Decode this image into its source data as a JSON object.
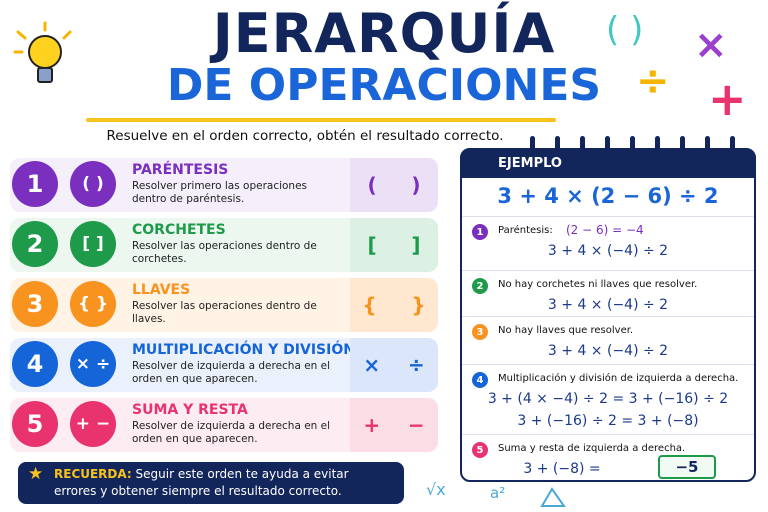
{
  "header": {
    "title_line1": "JERARQUÍA",
    "title_line2": "DE OPERACIONES",
    "subtitle": "Resuelve en el orden correcto, obtén el resultado correcto."
  },
  "decorations": {
    "parens": "( )",
    "times": "×",
    "divide": "÷",
    "plus": "+",
    "sqrt": "√x",
    "square": "a²"
  },
  "steps": [
    {
      "number": "1",
      "symbol": "( )",
      "title": "PARÉNTESIS",
      "description": "Resolver primero las operaciones dentro de paréntesis.",
      "example": "(     )"
    },
    {
      "number": "2",
      "symbol": "[ ]",
      "title": "CORCHETES",
      "description": "Resolver las operaciones dentro de corchetes.",
      "example": "[     ]"
    },
    {
      "number": "3",
      "symbol": "{ }",
      "title": "LLAVES",
      "description": "Resolver las operaciones dentro de llaves.",
      "example": "{     }"
    },
    {
      "number": "4",
      "symbol": "× ÷",
      "title": "MULTIPLICACIÓN Y DIVISIÓN",
      "description": "Resolver de izquierda a derecha en el orden en que aparecen.",
      "example": "×    ÷"
    },
    {
      "number": "5",
      "symbol": "+ −",
      "title": "SUMA Y RESTA",
      "description": "Resolver de izquierda a derecha en el orden en que aparecen.",
      "example": "+    −"
    }
  ],
  "reminder": {
    "label": "RECUERDA:",
    "text": "Seguir este orden te ayuda a evitar errores y obtener siempre el resultado correcto."
  },
  "example": {
    "title": "EJEMPLO",
    "expression": "3 + 4 × (2 − 6) ÷ 2",
    "steps": [
      {
        "number": "1",
        "label": "Paréntesis:",
        "detail": "(2 − 6) = −4",
        "lines": [
          "3 + 4 × (−4) ÷ 2"
        ]
      },
      {
        "number": "2",
        "label": "No hay corchetes ni llaves que resolver.",
        "lines": [
          "3 + 4 × (−4) ÷ 2"
        ]
      },
      {
        "number": "3",
        "label": "No hay llaves que resolver.",
        "lines": [
          "3 + 4 × (−4) ÷ 2"
        ]
      },
      {
        "number": "4",
        "label": "Multiplicación y división de izquierda a derecha.",
        "lines": [
          "3 + (4 × −4) ÷ 2 = 3 + (−16) ÷ 2",
          "3 + (−16) ÷ 2 = 3 + (−8)"
        ]
      },
      {
        "number": "5",
        "label": "Suma y resta de izquierda a derecha.",
        "lines": [
          "3 + (−8) ="
        ],
        "result": "−5"
      }
    ]
  }
}
